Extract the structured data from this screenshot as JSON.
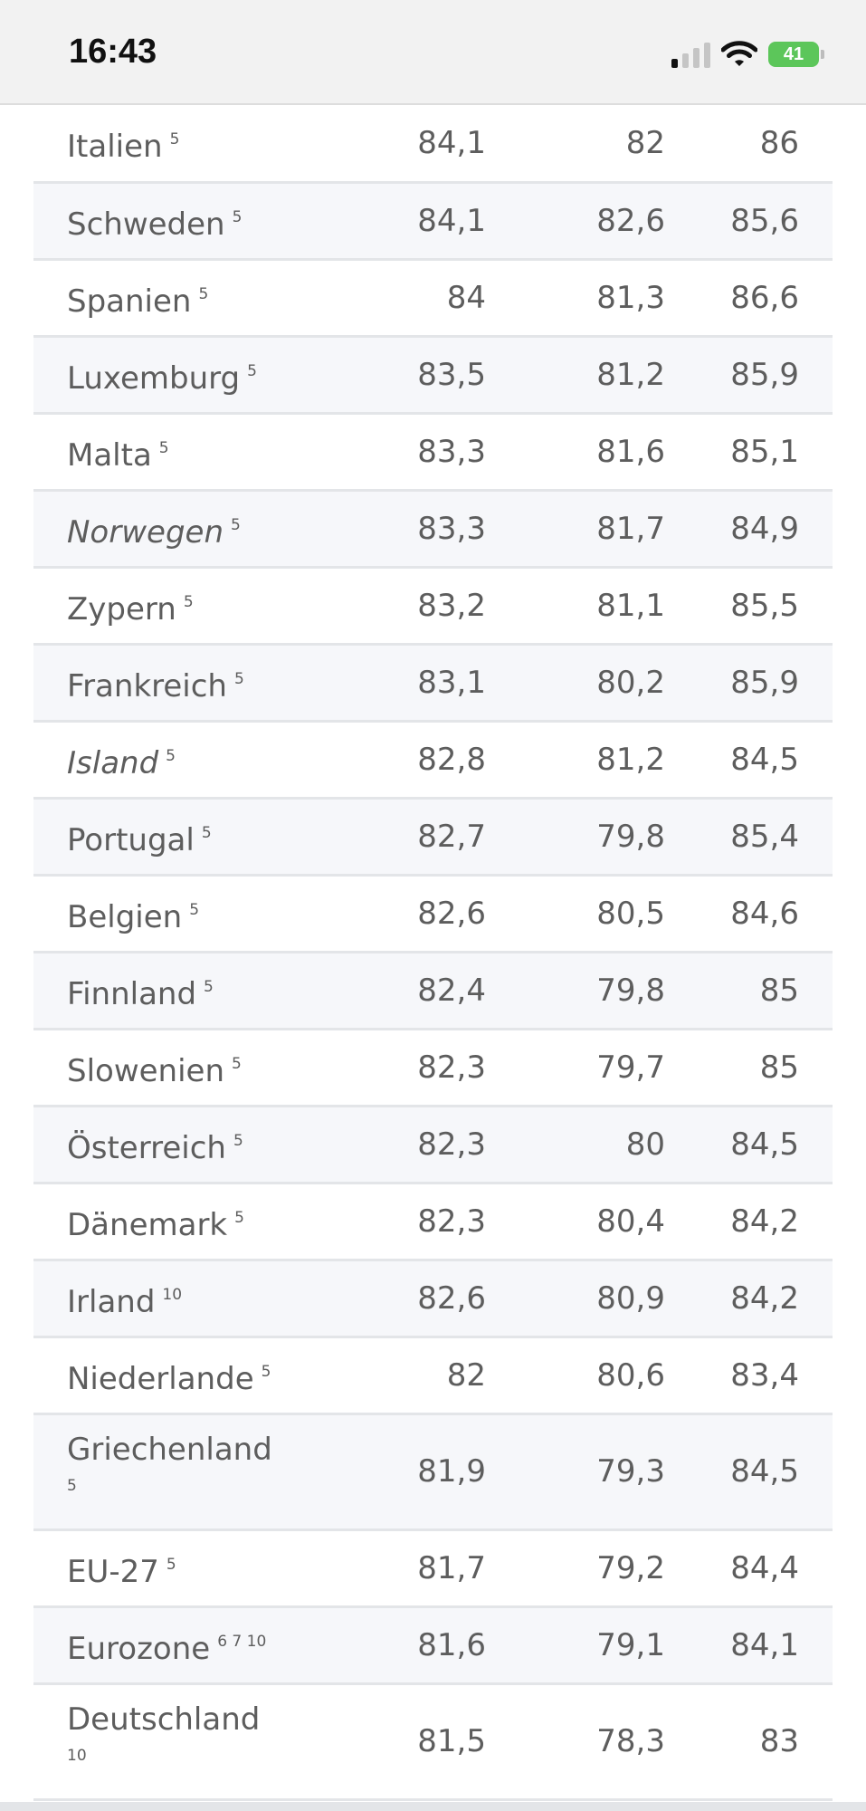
{
  "status_bar": {
    "time": "16:43",
    "battery_level": "41",
    "signal_bars_active": 1,
    "signal_bars_total": 4,
    "icons": [
      "signal-icon",
      "wifi-icon",
      "battery-charging-icon"
    ]
  },
  "table": {
    "rows": [
      {
        "country": "Italien",
        "note": "5",
        "v1": "84,1",
        "v2": "82",
        "v3": "86",
        "italic": false
      },
      {
        "country": "Schweden",
        "note": "5",
        "v1": "84,1",
        "v2": "82,6",
        "v3": "85,6",
        "italic": false
      },
      {
        "country": "Spanien",
        "note": "5",
        "v1": "84",
        "v2": "81,3",
        "v3": "86,6",
        "italic": false
      },
      {
        "country": "Luxemburg",
        "note": "5",
        "v1": "83,5",
        "v2": "81,2",
        "v3": "85,9",
        "italic": false
      },
      {
        "country": "Malta",
        "note": "5",
        "v1": "83,3",
        "v2": "81,6",
        "v3": "85,1",
        "italic": false
      },
      {
        "country": "Norwegen",
        "note": "5",
        "v1": "83,3",
        "v2": "81,7",
        "v3": "84,9",
        "italic": true
      },
      {
        "country": "Zypern",
        "note": "5",
        "v1": "83,2",
        "v2": "81,1",
        "v3": "85,5",
        "italic": false
      },
      {
        "country": "Frankreich",
        "note": "5",
        "v1": "83,1",
        "v2": "80,2",
        "v3": "85,9",
        "italic": false
      },
      {
        "country": "Island",
        "note": "5",
        "v1": "82,8",
        "v2": "81,2",
        "v3": "84,5",
        "italic": true
      },
      {
        "country": "Portugal",
        "note": "5",
        "v1": "82,7",
        "v2": "79,8",
        "v3": "85,4",
        "italic": false
      },
      {
        "country": "Belgien",
        "note": "5",
        "v1": "82,6",
        "v2": "80,5",
        "v3": "84,6",
        "italic": false
      },
      {
        "country": "Finnland",
        "note": "5",
        "v1": "82,4",
        "v2": "79,8",
        "v3": "85",
        "italic": false
      },
      {
        "country": "Slowenien",
        "note": "5",
        "v1": "82,3",
        "v2": "79,7",
        "v3": "85",
        "italic": false
      },
      {
        "country": "Österreich",
        "note": "5",
        "v1": "82,3",
        "v2": "80",
        "v3": "84,5",
        "italic": false
      },
      {
        "country": "Dänemark",
        "note": "5",
        "v1": "82,3",
        "v2": "80,4",
        "v3": "84,2",
        "italic": false
      },
      {
        "country": "Irland",
        "note": "10",
        "v1": "82,6",
        "v2": "80,9",
        "v3": "84,2",
        "italic": false
      },
      {
        "country": "Niederlande",
        "note": "5",
        "v1": "82",
        "v2": "80,6",
        "v3": "83,4",
        "italic": false
      },
      {
        "country": "Griechenland",
        "note": "5",
        "v1": "81,9",
        "v2": "79,3",
        "v3": "84,5",
        "italic": false,
        "wrap": true
      },
      {
        "country": "EU-27",
        "note": "5",
        "v1": "81,7",
        "v2": "79,2",
        "v3": "84,4",
        "italic": false
      },
      {
        "country": "Eurozone",
        "note": "6 7 10",
        "v1": "81,6",
        "v2": "79,1",
        "v3": "84,1",
        "italic": false
      },
      {
        "country": "Deutschland",
        "note": "10",
        "v1": "81,5",
        "v2": "78,3",
        "v3": "83",
        "italic": false,
        "wrap": true
      }
    ]
  }
}
